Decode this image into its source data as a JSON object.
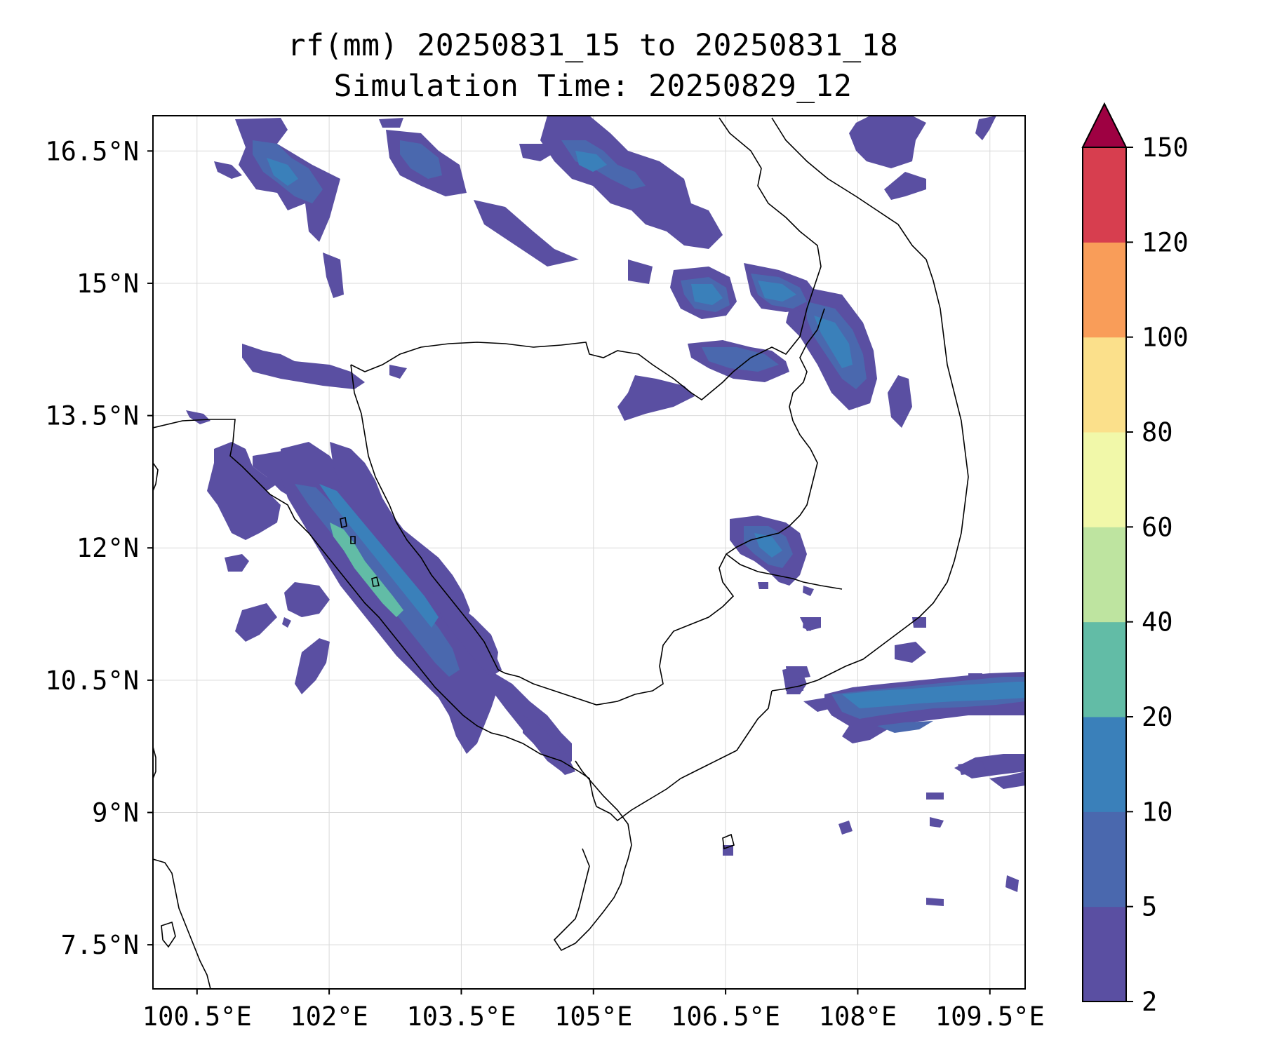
{
  "title": {
    "line1": "rf(mm) 20250831_15 to 20250831_18",
    "line2": "Simulation Time: 20250829_12"
  },
  "map": {
    "lon_ticks": [
      "100.5°E",
      "102°E",
      "103.5°E",
      "105°E",
      "106.5°E",
      "108°E",
      "109.5°E"
    ],
    "lat_ticks": [
      "16.5°N",
      "15°N",
      "13.5°N",
      "12°N",
      "10.5°N",
      "9°N",
      "7.5°N"
    ],
    "extent": {
      "lon_min": 100.0,
      "lon_max": 109.9,
      "lat_min": 7.0,
      "lat_max": 16.9
    },
    "grid": true
  },
  "colorbar": {
    "levels": [
      "2",
      "5",
      "10",
      "20",
      "40",
      "60",
      "80",
      "100",
      "120",
      "150"
    ],
    "colors": [
      "#5a4fa2",
      "#4a68ae",
      "#3a80ba",
      "#62bca6",
      "#bee4a0",
      "#f1f8a9",
      "#fbe08b",
      "#f99d59",
      "#d73e4f",
      "#9e0142"
    ],
    "extend": "max"
  }
}
